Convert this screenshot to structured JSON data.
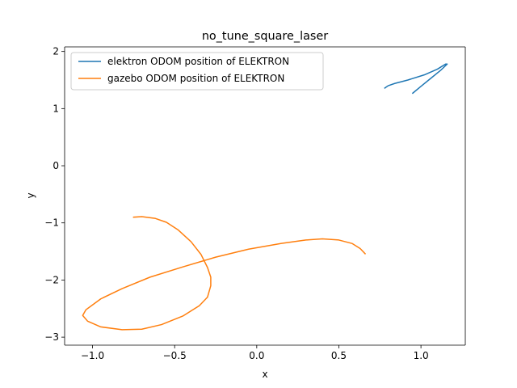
{
  "chart_data": {
    "type": "line",
    "title": "no_tune_square_laser",
    "xlabel": "x",
    "ylabel": "y",
    "xlim": [
      -1.17,
      1.27
    ],
    "ylim": [
      -3.14,
      2.08
    ],
    "xticks": [
      -1.0,
      -0.5,
      0.0,
      0.5,
      1.0
    ],
    "xtick_labels": [
      "−1.0",
      "−0.5",
      "0.0",
      "0.5",
      "1.0"
    ],
    "yticks": [
      -3,
      -2,
      -1,
      0,
      1,
      2
    ],
    "ytick_labels": [
      "−3",
      "−2",
      "−1",
      "0",
      "1",
      "2"
    ],
    "grid": false,
    "legend_position": "top-left",
    "series": [
      {
        "name": "elektron ODOM position of ELEKTRON",
        "color": "#1f77b4",
        "x": [
          0.78,
          0.8,
          0.84,
          0.92,
          1.02,
          1.1,
          1.15,
          1.16,
          1.12,
          1.06,
          1.0,
          0.95
        ],
        "y": [
          1.36,
          1.4,
          1.44,
          1.5,
          1.59,
          1.69,
          1.78,
          1.78,
          1.67,
          1.53,
          1.39,
          1.27
        ]
      },
      {
        "name": "gazebo ODOM position of ELEKTRON",
        "color": "#ff7f0e",
        "x": [
          -0.75,
          -0.7,
          -0.62,
          -0.55,
          -0.48,
          -0.4,
          -0.34,
          -0.3,
          -0.28,
          -0.28,
          -0.3,
          -0.35,
          -0.45,
          -0.58,
          -0.7,
          -0.82,
          -0.95,
          -1.03,
          -1.06,
          -1.04,
          -0.95,
          -0.82,
          -0.65,
          -0.45,
          -0.25,
          -0.05,
          0.15,
          0.3,
          0.4,
          0.5,
          0.58,
          0.63,
          0.66
        ],
        "y": [
          -0.9,
          -0.89,
          -0.92,
          -0.99,
          -1.12,
          -1.33,
          -1.55,
          -1.78,
          -1.95,
          -2.1,
          -2.3,
          -2.45,
          -2.63,
          -2.78,
          -2.86,
          -2.87,
          -2.82,
          -2.72,
          -2.62,
          -2.52,
          -2.33,
          -2.15,
          -1.95,
          -1.77,
          -1.6,
          -1.46,
          -1.36,
          -1.3,
          -1.28,
          -1.3,
          -1.36,
          -1.45,
          -1.54
        ]
      }
    ]
  }
}
